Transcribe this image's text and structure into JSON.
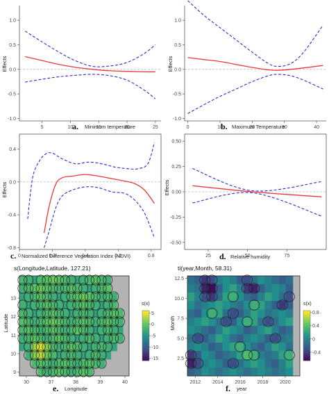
{
  "figure": {
    "background": "#ffffff"
  },
  "colors": {
    "fit": "#e8393b",
    "ci": "#2b2bd6",
    "zero": "#bbbbbb",
    "axis": "#555555",
    "frame": "#222222",
    "no_data": "#b3b3b3",
    "contour": "#1a1a1a"
  },
  "chart_data": [
    {
      "type": "line",
      "panel_label": "a.",
      "xlabel": "Minimum temperature",
      "ylabel": "Effects",
      "xlim": [
        1,
        26
      ],
      "ylim": [
        -1.05,
        1.3
      ],
      "xticks": [
        5,
        10,
        15,
        20,
        25
      ],
      "yticks": [
        -1.0,
        -0.5,
        0.0,
        0.5,
        1.0
      ],
      "ytick_labels": [
        "-1.0",
        "-0.5",
        "0.0",
        "0.5",
        "1.0"
      ],
      "reference_line": 0,
      "series": [
        {
          "role": "estimate",
          "style": "solid",
          "x": [
            2,
            5,
            8,
            11,
            14,
            17,
            20,
            23,
            25
          ],
          "y": [
            0.26,
            0.18,
            0.1,
            0.04,
            0.0,
            -0.03,
            -0.04,
            -0.05,
            -0.05
          ]
        },
        {
          "role": "upper",
          "style": "dashed",
          "x": [
            2,
            5,
            8,
            11,
            14,
            17,
            20,
            23,
            25
          ],
          "y": [
            0.78,
            0.56,
            0.35,
            0.17,
            0.06,
            0.07,
            0.14,
            0.32,
            0.5
          ]
        },
        {
          "role": "lower",
          "style": "dashed",
          "x": [
            2,
            5,
            8,
            11,
            14,
            17,
            20,
            23,
            25
          ],
          "y": [
            -0.26,
            -0.2,
            -0.15,
            -0.12,
            -0.1,
            -0.13,
            -0.22,
            -0.42,
            -0.6
          ]
        }
      ]
    },
    {
      "type": "line",
      "panel_label": "b.",
      "xlabel": "Maximum Temperature",
      "ylabel": "Effects",
      "xlim": [
        -1,
        43
      ],
      "ylim": [
        -1.05,
        1.3
      ],
      "xticks": [
        0,
        10,
        20,
        30,
        40
      ],
      "yticks": [
        -1.0,
        -0.5,
        0.0,
        0.5,
        1.0
      ],
      "ytick_labels": [
        "-1.0",
        "-0.5",
        "0.0",
        "0.5",
        "1.0"
      ],
      "reference_line": 0,
      "series": [
        {
          "role": "estimate",
          "style": "solid",
          "x": [
            0,
            5,
            10,
            15,
            20,
            25,
            28,
            32,
            36,
            42
          ],
          "y": [
            0.24,
            0.2,
            0.16,
            0.1,
            0.04,
            -0.01,
            -0.02,
            0.0,
            0.03,
            0.08
          ]
        },
        {
          "role": "upper",
          "style": "dashed",
          "x": [
            0,
            5,
            10,
            15,
            20,
            25,
            28,
            32,
            36,
            42
          ],
          "y": [
            1.4,
            1.1,
            0.85,
            0.6,
            0.35,
            0.12,
            0.06,
            0.12,
            0.35,
            0.9
          ]
        },
        {
          "role": "lower",
          "style": "dashed",
          "x": [
            0,
            5,
            10,
            15,
            20,
            25,
            28,
            32,
            36,
            42
          ],
          "y": [
            -0.9,
            -0.72,
            -0.55,
            -0.4,
            -0.25,
            -0.13,
            -0.1,
            -0.13,
            -0.22,
            -0.4
          ]
        }
      ]
    },
    {
      "type": "line",
      "panel_label": "c.",
      "xlabel": "Normalized Difference Vegetation Index (NDVI)",
      "ylabel": "Effects",
      "xlim": [
        0.0,
        0.86
      ],
      "ylim": [
        -0.82,
        0.58
      ],
      "xticks": [
        0.0,
        0.2,
        0.4,
        0.6,
        0.8
      ],
      "yticks": [
        -0.8,
        -0.4,
        0.0,
        0.4
      ],
      "ytick_labels": [
        "-0.8",
        "-0.4",
        "0.0",
        "0.4"
      ],
      "reference_line": 0,
      "series": [
        {
          "role": "estimate",
          "style": "solid",
          "x": [
            0.15,
            0.18,
            0.22,
            0.26,
            0.32,
            0.4,
            0.48,
            0.56,
            0.64,
            0.7,
            0.76,
            0.82
          ],
          "y": [
            -0.62,
            -0.3,
            -0.03,
            0.05,
            0.07,
            0.09,
            0.07,
            0.04,
            0.01,
            -0.02,
            -0.1,
            -0.26
          ]
        },
        {
          "role": "upper",
          "style": "dashed",
          "x": [
            0.05,
            0.08,
            0.12,
            0.16,
            0.2,
            0.26,
            0.34,
            0.42,
            0.5,
            0.58,
            0.66,
            0.72,
            0.78,
            0.82
          ],
          "y": [
            -0.45,
            0.05,
            0.25,
            0.34,
            0.35,
            0.28,
            0.22,
            0.24,
            0.22,
            0.18,
            0.16,
            0.16,
            0.22,
            0.48
          ]
        },
        {
          "role": "lower",
          "style": "dashed",
          "x": [
            0.15,
            0.18,
            0.22,
            0.26,
            0.32,
            0.4,
            0.48,
            0.56,
            0.64,
            0.7,
            0.76,
            0.82
          ],
          "y": [
            -0.8,
            -0.6,
            -0.32,
            -0.17,
            -0.1,
            -0.06,
            -0.07,
            -0.12,
            -0.14,
            -0.22,
            -0.38,
            -0.68
          ]
        }
      ]
    },
    {
      "type": "line",
      "panel_label": "d.",
      "xlabel": "Relative humidity",
      "ylabel": "Effects",
      "xlim": [
        10,
        100
      ],
      "ylim": [
        -0.57,
        0.57
      ],
      "xticks": [
        25,
        50,
        75
      ],
      "yticks": [
        -0.5,
        -0.25,
        0.0,
        0.25,
        0.5
      ],
      "ytick_labels": [
        "-0.50",
        "-0.25",
        "0.00",
        "0.25",
        "0.50"
      ],
      "reference_line": 0,
      "series": [
        {
          "role": "estimate",
          "style": "solid",
          "x": [
            15,
            53,
            97
          ],
          "y": [
            0.06,
            0.0,
            -0.05
          ]
        },
        {
          "role": "upper",
          "style": "dashed",
          "x": [
            15,
            53,
            97
          ],
          "y": [
            0.23,
            0.01,
            0.1
          ]
        },
        {
          "role": "lower",
          "style": "dashed",
          "x": [
            15,
            53,
            97
          ],
          "y": [
            -0.11,
            -0.01,
            -0.24
          ]
        }
      ]
    },
    {
      "type": "heatmap",
      "panel_label": "e.",
      "title": "s(Longitude,Latitude, 127.21)",
      "xlabel": "Longitude",
      "ylabel": "Latitude",
      "xlim": [
        29.5,
        40.5
      ],
      "ylim": [
        8.8,
        14.2
      ],
      "xticks": [
        30,
        37,
        38,
        39,
        40
      ],
      "yticks": [
        9,
        10,
        11,
        12,
        13
      ],
      "color_scale": {
        "title": "s(x)",
        "range": [
          -16,
          6
        ],
        "ticks": [
          5,
          0,
          -5,
          -10,
          -15
        ],
        "colors": [
          "#440154",
          "#3b528b",
          "#21908c",
          "#5dc863",
          "#fde725"
        ]
      },
      "grid_cols": 18,
      "grid_rows": 12,
      "values": [
        [
          -1,
          -2,
          -3,
          -1,
          0,
          1,
          0,
          -1,
          -2,
          -3,
          -2,
          -1,
          0,
          -1,
          -2,
          -99,
          -99,
          -99
        ],
        [
          -2,
          -1,
          0,
          1,
          0,
          -1,
          -2,
          -1,
          0,
          -1,
          -2,
          -3,
          -2,
          -1,
          0,
          -99,
          -99,
          -99
        ],
        [
          -3,
          -2,
          -1,
          0,
          -1,
          -2,
          -3,
          -2,
          -1,
          0,
          1,
          0,
          -1,
          -2,
          -1,
          -2,
          -99,
          -99
        ],
        [
          -2,
          -3,
          -2,
          -1,
          0,
          -1,
          -2,
          -3,
          -2,
          -1,
          0,
          -1,
          -2,
          -3,
          -2,
          -1,
          -99,
          -99
        ],
        [
          -1,
          -2,
          -3,
          -2,
          -1,
          0,
          -1,
          -2,
          -3,
          -2,
          -1,
          -2,
          -3,
          -2,
          -1,
          0,
          -1,
          -99
        ],
        [
          0,
          -1,
          -2,
          -1,
          0,
          1,
          0,
          -1,
          -2,
          -1,
          0,
          -1,
          -2,
          -1,
          0,
          -1,
          -2,
          -99
        ],
        [
          -1,
          0,
          -1,
          -2,
          -1,
          0,
          -1,
          -2,
          -1,
          0,
          -1,
          -2,
          -3,
          -2,
          -1,
          -2,
          -3,
          -99
        ],
        [
          -2,
          -1,
          0,
          -1,
          -2,
          -1,
          0,
          -1,
          -2,
          -3,
          -2,
          -1,
          -2,
          -3,
          -2,
          -1,
          -2,
          -99
        ],
        [
          -3,
          -2,
          3,
          5,
          2,
          -1,
          -2,
          -1,
          0,
          -1,
          -2,
          -3,
          -2,
          -1,
          -2,
          -3,
          -99,
          -99
        ],
        [
          -99,
          -2,
          2,
          4,
          1,
          -1,
          -3,
          -2,
          -1,
          -2,
          -3,
          -2,
          -1,
          -2,
          -3,
          -99,
          -99,
          -99
        ],
        [
          -99,
          -99,
          -1,
          0,
          -1,
          -2,
          -1,
          0,
          -1,
          -2,
          -1,
          0,
          -1,
          -2,
          -99,
          -99,
          -99,
          -99
        ],
        [
          -99,
          -99,
          -99,
          -1,
          -2,
          -1,
          0,
          -1,
          -2,
          -1,
          0,
          -1,
          -99,
          -99,
          -99,
          -99,
          -99,
          -99
        ]
      ]
    },
    {
      "type": "heatmap",
      "panel_label": "f.",
      "title": "ti(year,Month, 58.31)",
      "xlabel": "year",
      "ylabel": "Month",
      "xlim": [
        2011.3,
        2021.3
      ],
      "ylim": [
        0.3,
        12.8
      ],
      "xticks": [
        2012,
        2014,
        2016,
        2018,
        2020
      ],
      "yticks": [
        2.5,
        5.0,
        7.5,
        10.0,
        12.5
      ],
      "ytick_labels": [
        "2.5",
        "5.0",
        "7.5",
        "10.0",
        "12.5"
      ],
      "color_scale": {
        "title": "s(x)",
        "range": [
          -0.65,
          0.85
        ],
        "ticks": [
          0.8,
          0.4,
          0.0,
          -0.4
        ],
        "colors": [
          "#440154",
          "#3b528b",
          "#21908c",
          "#5dc863",
          "#fde725"
        ]
      },
      "grid_cols": 16,
      "grid_rows": 12,
      "values": [
        [
          -0.1,
          -0.2,
          -0.4,
          -0.3,
          0.0,
          0.1,
          0.0,
          -0.2,
          -0.3,
          -0.1,
          0.1,
          0.0,
          -0.1,
          -0.2,
          -0.1,
          -99
        ],
        [
          0.0,
          -0.1,
          -0.5,
          -0.6,
          -0.2,
          0.1,
          0.2,
          0.0,
          -0.4,
          -0.5,
          -0.2,
          0.0,
          0.1,
          0.0,
          -0.2,
          -99
        ],
        [
          0.2,
          0.0,
          -0.3,
          -0.4,
          -0.1,
          0.2,
          0.3,
          0.1,
          -0.1,
          -0.2,
          0.0,
          0.2,
          0.1,
          -0.1,
          -0.3,
          -99
        ],
        [
          0.1,
          -0.1,
          0.0,
          0.1,
          0.2,
          0.1,
          0.0,
          -0.1,
          0.1,
          0.3,
          0.2,
          0.0,
          -0.2,
          -0.4,
          -0.2,
          -99
        ],
        [
          -0.1,
          -0.2,
          0.1,
          0.3,
          0.2,
          -0.1,
          -0.3,
          -0.2,
          0.0,
          0.2,
          0.1,
          -0.1,
          0.0,
          0.1,
          0.0,
          -99
        ],
        [
          0.0,
          0.1,
          0.2,
          0.1,
          -0.1,
          -0.3,
          -0.2,
          0.1,
          0.3,
          0.2,
          -0.1,
          -0.3,
          -0.1,
          0.1,
          0.2,
          -99
        ],
        [
          0.1,
          0.0,
          -0.1,
          -0.2,
          0.0,
          0.2,
          0.1,
          0.0,
          -0.2,
          -0.1,
          0.1,
          0.2,
          0.0,
          -0.2,
          -0.1,
          -99
        ],
        [
          -0.1,
          -0.3,
          -0.2,
          0.0,
          0.2,
          0.1,
          -0.1,
          -0.2,
          0.0,
          0.1,
          0.0,
          -0.2,
          -0.3,
          -0.1,
          0.0,
          -99
        ],
        [
          0.0,
          0.1,
          0.0,
          -0.2,
          -0.1,
          0.1,
          0.2,
          0.3,
          0.1,
          -0.1,
          -0.2,
          0.0,
          0.2,
          0.1,
          -0.1,
          -99
        ],
        [
          -0.4,
          -0.2,
          0.1,
          0.0,
          -0.2,
          -0.1,
          0.0,
          0.2,
          0.4,
          0.3,
          0.0,
          -0.1,
          0.0,
          0.2,
          0.3,
          -99
        ],
        [
          -0.5,
          -0.3,
          0.0,
          0.1,
          0.0,
          -0.2,
          -0.3,
          -0.1,
          0.1,
          0.2,
          0.1,
          -0.1,
          -0.2,
          0.0,
          0.2,
          -99
        ],
        [
          -0.2,
          -0.1,
          0.1,
          0.0,
          -0.1,
          0.0,
          0.1,
          0.0,
          -0.1,
          0.0,
          0.1,
          0.0,
          -0.1,
          0.0,
          0.1,
          -99
        ]
      ]
    }
  ]
}
